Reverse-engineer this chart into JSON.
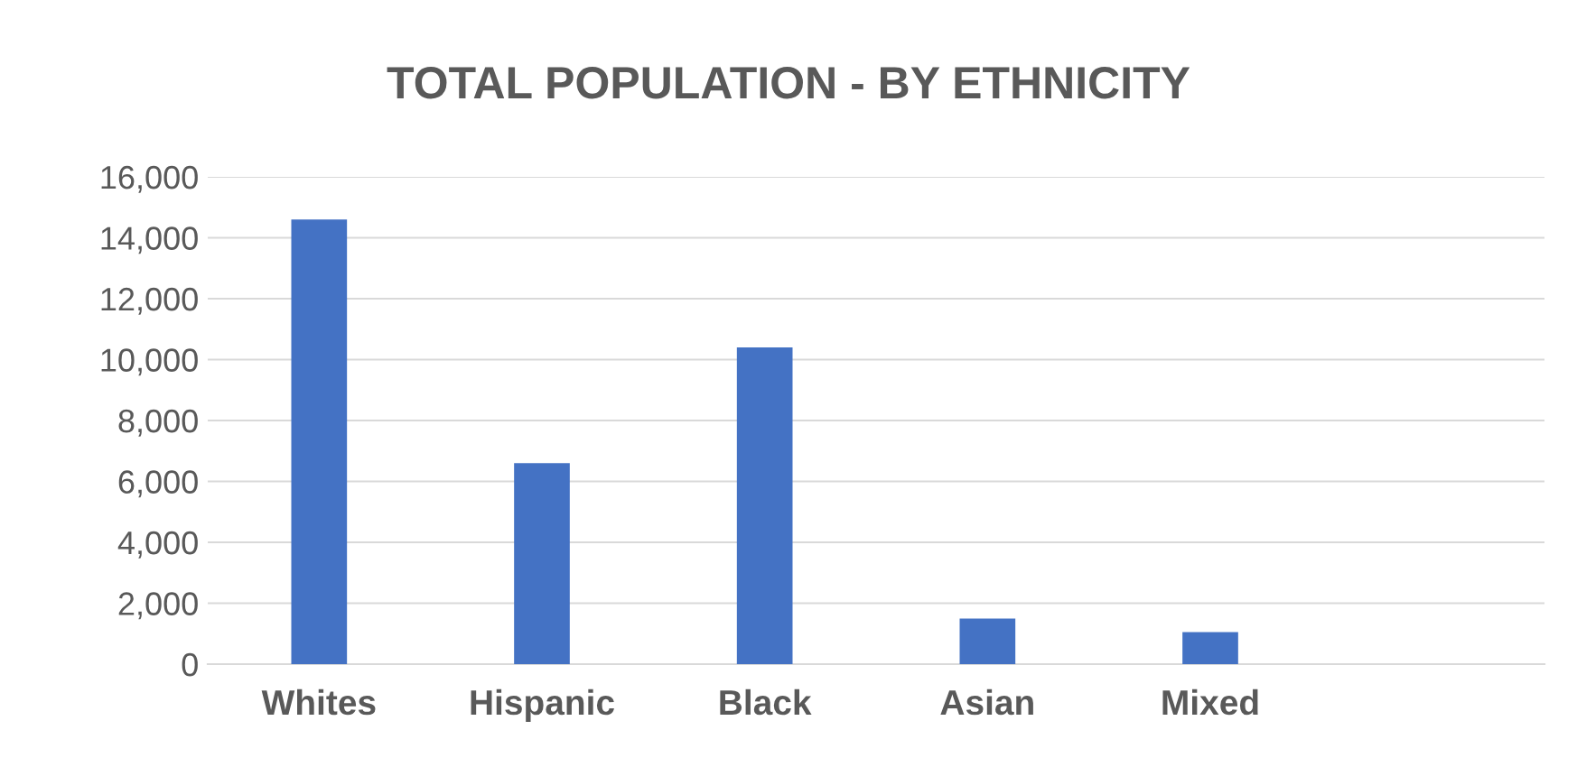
{
  "chart_data": {
    "type": "bar",
    "title": "TOTAL POPULATION - BY ETHNICITY",
    "categories": [
      "Whites",
      "Hispanic",
      "Black",
      "Asian",
      "Mixed",
      null
    ],
    "values": [
      14600,
      6600,
      10400,
      1500,
      1050,
      null
    ],
    "color": "#4472c4",
    "ylim": [
      0,
      16000
    ],
    "yticks": [
      {
        "value": 0,
        "label": "0"
      },
      {
        "value": 2000,
        "label": "2,000"
      },
      {
        "value": 4000,
        "label": "4,000"
      },
      {
        "value": 6000,
        "label": "6,000"
      },
      {
        "value": 8000,
        "label": "8,000"
      },
      {
        "value": 10000,
        "label": "10,000"
      },
      {
        "value": 12000,
        "label": "12,000"
      },
      {
        "value": 14000,
        "label": "14,000"
      },
      {
        "value": 16000,
        "label": "16,000"
      }
    ],
    "grid": "y",
    "legend": false
  }
}
